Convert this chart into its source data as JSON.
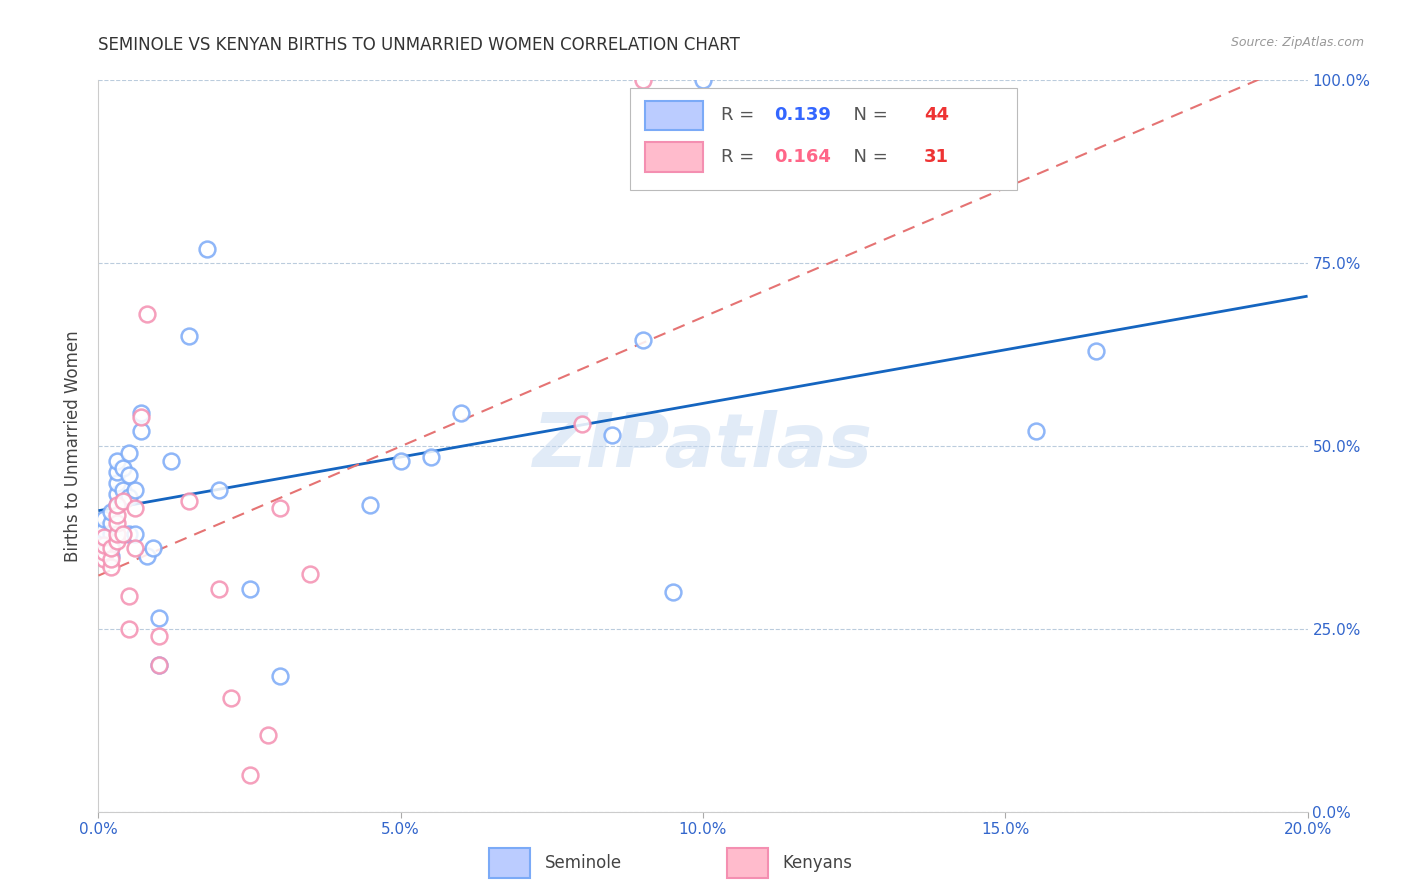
{
  "title": "SEMINOLE VS KENYAN BIRTHS TO UNMARRIED WOMEN CORRELATION CHART",
  "source": "Source: ZipAtlas.com",
  "ylabel": "Births to Unmarried Women",
  "xlim": [
    0.0,
    0.2
  ],
  "ylim": [
    0.0,
    1.0
  ],
  "xtick_vals": [
    0.0,
    0.05,
    0.1,
    0.15,
    0.2
  ],
  "xtick_labels": [
    "0.0%",
    "5.0%",
    "10.0%",
    "15.0%",
    "20.0%"
  ],
  "ytick_vals": [
    0.0,
    0.25,
    0.5,
    0.75,
    1.0
  ],
  "ytick_labels": [
    "0.0%",
    "25.0%",
    "50.0%",
    "75.0%",
    "100.0%"
  ],
  "watermark": "ZIPatlas",
  "legend_seminole": "Seminole",
  "legend_kenyans": "Kenyans",
  "R_seminole": "0.139",
  "N_seminole": "44",
  "R_kenyans": "0.164",
  "N_kenyans": "31",
  "seminole_color": "#7BAAF7",
  "kenyans_color": "#F48FB1",
  "trendline_seminole_color": "#1565C0",
  "trendline_kenyans_color": "#E57373",
  "seminole_x": [
    0.001,
    0.001,
    0.001,
    0.002,
    0.002,
    0.002,
    0.002,
    0.002,
    0.003,
    0.003,
    0.003,
    0.003,
    0.003,
    0.004,
    0.004,
    0.004,
    0.005,
    0.005,
    0.005,
    0.005,
    0.006,
    0.006,
    0.007,
    0.007,
    0.008,
    0.009,
    0.01,
    0.01,
    0.012,
    0.015,
    0.018,
    0.02,
    0.025,
    0.03,
    0.045,
    0.05,
    0.055,
    0.06,
    0.085,
    0.09,
    0.095,
    0.1,
    0.155,
    0.165
  ],
  "seminole_y": [
    0.37,
    0.385,
    0.4,
    0.35,
    0.365,
    0.38,
    0.395,
    0.41,
    0.42,
    0.435,
    0.45,
    0.465,
    0.48,
    0.38,
    0.44,
    0.47,
    0.38,
    0.43,
    0.46,
    0.49,
    0.38,
    0.44,
    0.52,
    0.545,
    0.35,
    0.36,
    0.2,
    0.265,
    0.48,
    0.65,
    0.77,
    0.44,
    0.305,
    0.185,
    0.42,
    0.48,
    0.485,
    0.545,
    0.515,
    0.645,
    0.3,
    1.0,
    0.52,
    0.63
  ],
  "kenyans_x": [
    0.001,
    0.001,
    0.001,
    0.001,
    0.002,
    0.002,
    0.002,
    0.003,
    0.003,
    0.003,
    0.003,
    0.003,
    0.004,
    0.004,
    0.005,
    0.005,
    0.006,
    0.006,
    0.007,
    0.008,
    0.01,
    0.01,
    0.015,
    0.02,
    0.022,
    0.025,
    0.028,
    0.03,
    0.035,
    0.08,
    0.09
  ],
  "kenyans_y": [
    0.345,
    0.355,
    0.365,
    0.375,
    0.335,
    0.345,
    0.36,
    0.37,
    0.38,
    0.395,
    0.405,
    0.42,
    0.38,
    0.425,
    0.295,
    0.25,
    0.36,
    0.415,
    0.54,
    0.68,
    0.24,
    0.2,
    0.425,
    0.305,
    0.155,
    0.05,
    0.105,
    0.415,
    0.325,
    0.53,
    1.0
  ]
}
